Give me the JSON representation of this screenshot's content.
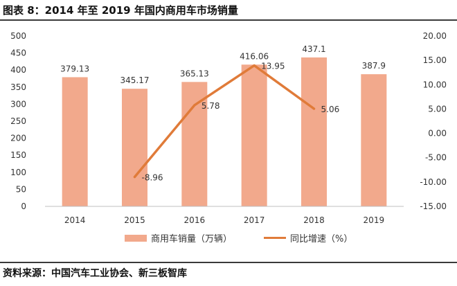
{
  "figure": {
    "title": "图表 8：2014 年至 2019 年国内商用车市场销量",
    "source": "资料来源：中国汽车工业协会、新三板智库"
  },
  "colors": {
    "bar": "#f2a98c",
    "line": "#e07b39",
    "axis": "#bfbfbf",
    "text": "#333333"
  },
  "chart_data": {
    "type": "bar",
    "categories": [
      "2014",
      "2015",
      "2016",
      "2017",
      "2018",
      "2019"
    ],
    "series": [
      {
        "name": "商用车销量（万辆）",
        "type": "bar",
        "axis": "left",
        "values": [
          379.13,
          345.17,
          365.13,
          416.06,
          437.1,
          387.9
        ],
        "labels": [
          "379.13",
          "345.17",
          "365.13",
          "416.06",
          "437.1",
          "387.9"
        ]
      },
      {
        "name": "同比增速（%）",
        "type": "line",
        "axis": "right",
        "values": [
          null,
          -8.96,
          5.78,
          13.95,
          5.06,
          null
        ],
        "labels": [
          "",
          "-8.96",
          "5.78",
          "13.95",
          "5.06",
          ""
        ]
      }
    ],
    "y_left": {
      "min": 0,
      "max": 500,
      "ticks": [
        "0",
        "50",
        "100",
        "150",
        "200",
        "250",
        "300",
        "350",
        "400",
        "450",
        "500"
      ]
    },
    "y_right": {
      "min": -15,
      "max": 20,
      "ticks": [
        "-15.00",
        "-10.00",
        "-5.00",
        "0.00",
        "5.00",
        "10.00",
        "15.00",
        "20.00"
      ]
    },
    "legend_position": "bottom",
    "grid": false
  }
}
